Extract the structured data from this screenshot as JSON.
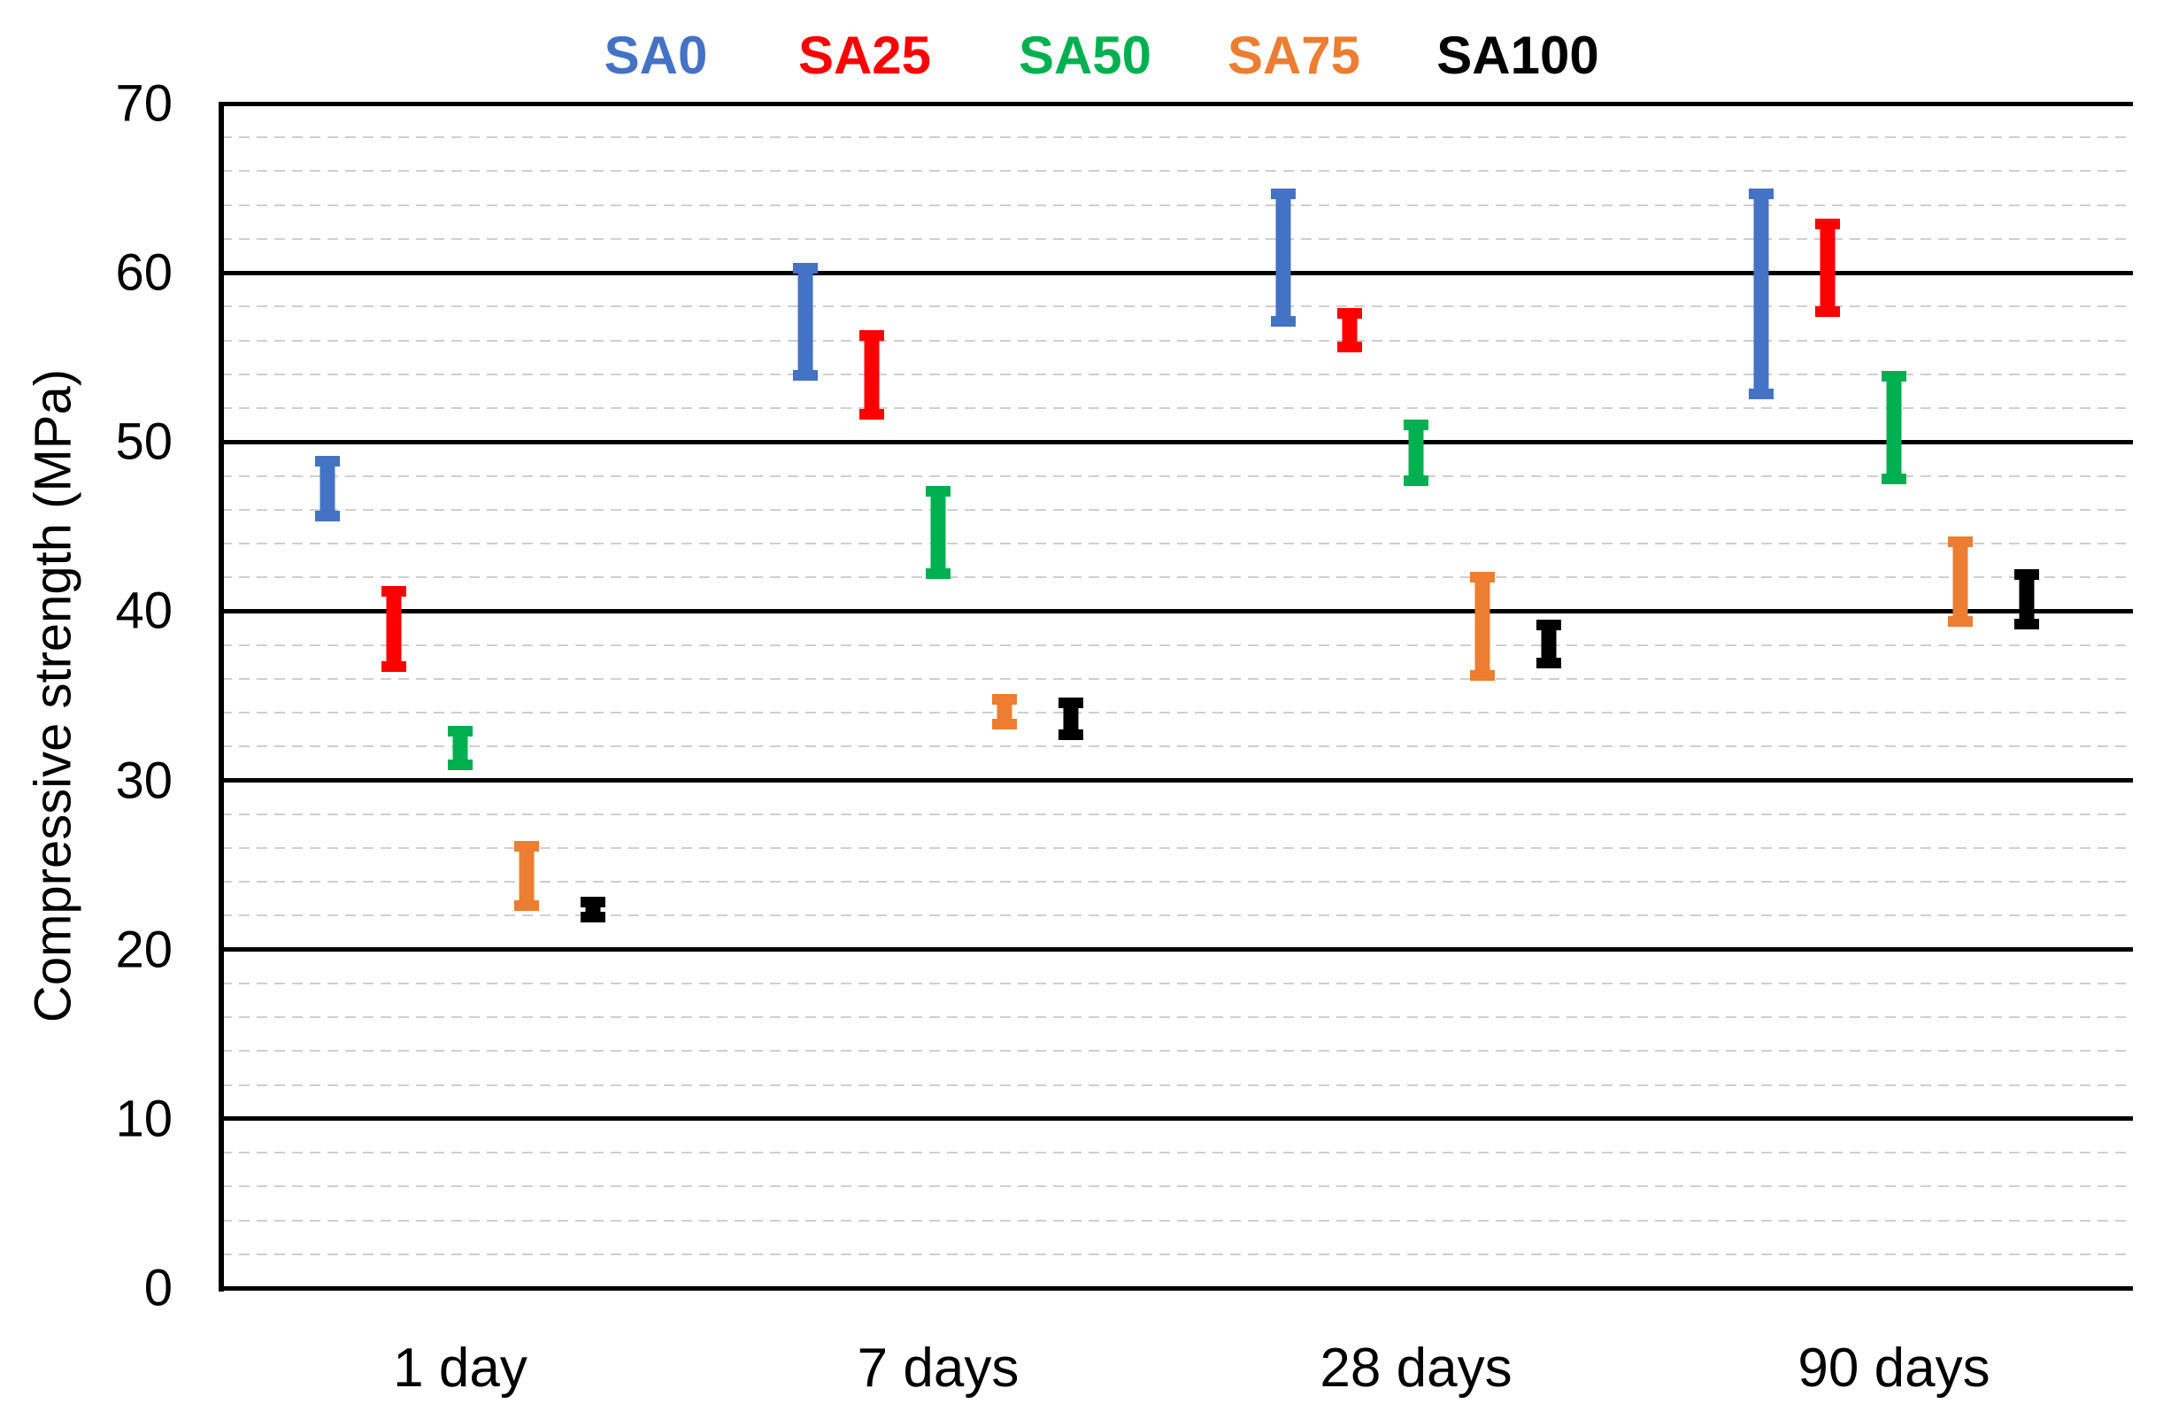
{
  "chart_data": {
    "type": "bar",
    "subtype": "floating-range-hilo",
    "title": "",
    "xlabel": "",
    "ylabel": "Compressive strength (MPa)",
    "ylim": [
      0,
      70
    ],
    "y_major_tick_step": 10,
    "y_minor_tick_step": 2,
    "y_major_ticks": [
      "0",
      "10",
      "20",
      "30",
      "40",
      "50",
      "60",
      "70"
    ],
    "grid": {
      "major": "solid-black",
      "minor": "dashed-light-gray"
    },
    "legend_position": "top",
    "categories": [
      "1 day",
      "7 days",
      "28 days",
      "90 days"
    ],
    "series": [
      {
        "name": "SA0",
        "color": "#4472C4",
        "ranges": [
          [
            45.3,
            49.2
          ],
          [
            53.6,
            60.6
          ],
          [
            56.8,
            65.0
          ],
          [
            52.5,
            65.0
          ]
        ]
      },
      {
        "name": "SA25",
        "color": "#FF0000",
        "ranges": [
          [
            36.4,
            41.5
          ],
          [
            51.3,
            56.6
          ],
          [
            55.3,
            57.9
          ],
          [
            57.4,
            63.2
          ]
        ]
      },
      {
        "name": "SA50",
        "color": "#00B050",
        "ranges": [
          [
            30.6,
            33.2
          ],
          [
            41.9,
            47.4
          ],
          [
            47.4,
            51.3
          ],
          [
            47.5,
            54.2
          ]
        ]
      },
      {
        "name": "SA75",
        "color": "#ED7D31",
        "ranges": [
          [
            22.3,
            26.4
          ],
          [
            33.0,
            35.1
          ],
          [
            35.9,
            42.3
          ],
          [
            39.1,
            44.4
          ]
        ]
      },
      {
        "name": "SA100",
        "color": "#000000",
        "ranges": [
          [
            21.6,
            23.1
          ],
          [
            32.4,
            34.9
          ],
          [
            36.6,
            39.5
          ],
          [
            38.9,
            42.5
          ]
        ]
      }
    ]
  }
}
